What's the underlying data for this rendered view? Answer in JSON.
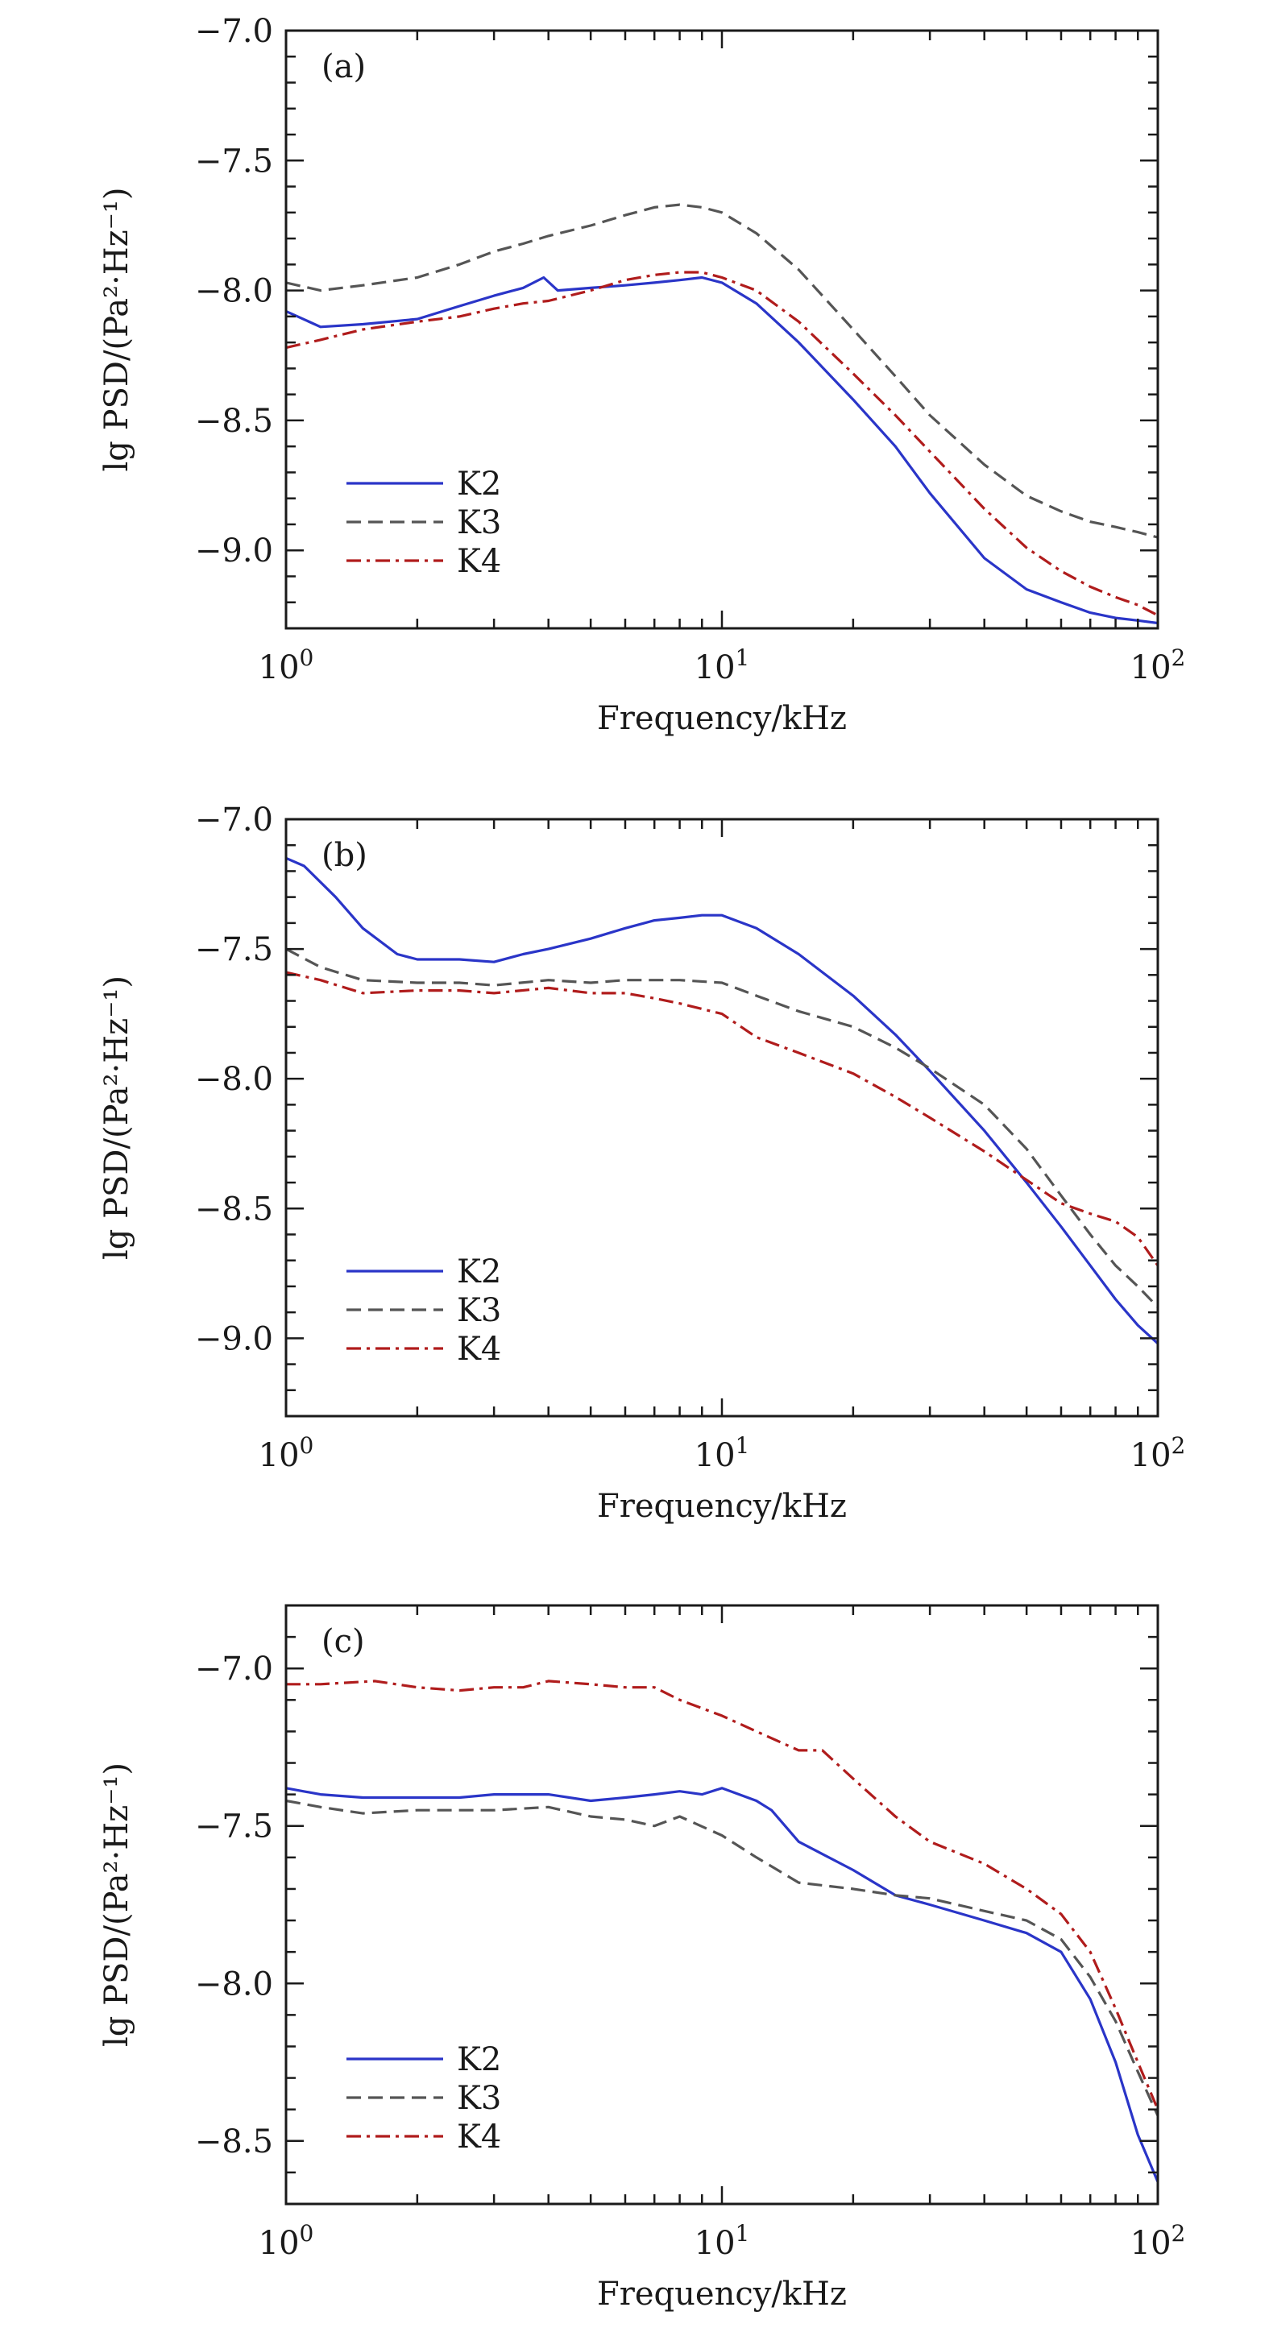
{
  "chart_data": [
    {
      "type": "line",
      "panel_label": "(a)",
      "xscale": "log",
      "xlim": [
        1,
        100
      ],
      "ylim": [
        -9.3,
        -7.0
      ],
      "xlabel": "Frequency/kHz",
      "ylabel": "lg PSD/(Pa²·Hz⁻¹)",
      "xticks": [
        {
          "value": 1,
          "base": "10",
          "exp": "0"
        },
        {
          "value": 10,
          "base": "10",
          "exp": "1"
        },
        {
          "value": 100,
          "base": "10",
          "exp": "2"
        }
      ],
      "yticks": [
        {
          "value": -7.0,
          "label": "−7.0"
        },
        {
          "value": -7.5,
          "label": "−7.5"
        },
        {
          "value": -8.0,
          "label": "−8.0"
        },
        {
          "value": -8.5,
          "label": "−8.5"
        },
        {
          "value": -9.0,
          "label": "−9.0"
        }
      ],
      "legend": "lower-left",
      "series": [
        {
          "name": "K2",
          "color": "#2a35c8",
          "dash": "solid",
          "x": [
            1,
            1.2,
            1.5,
            2,
            2.5,
            3,
            3.5,
            3.9,
            4.2,
            5,
            6,
            7,
            8,
            9,
            10,
            12,
            15,
            20,
            25,
            30,
            40,
            50,
            60,
            70,
            80,
            90,
            100
          ],
          "y": [
            -8.08,
            -8.14,
            -8.13,
            -8.11,
            -8.06,
            -8.02,
            -7.99,
            -7.95,
            -8.0,
            -7.99,
            -7.98,
            -7.97,
            -7.96,
            -7.95,
            -7.97,
            -8.05,
            -8.2,
            -8.42,
            -8.6,
            -8.78,
            -9.03,
            -9.15,
            -9.2,
            -9.24,
            -9.26,
            -9.27,
            -9.28
          ]
        },
        {
          "name": "K3",
          "color": "#555555",
          "dash": "dash",
          "x": [
            1,
            1.2,
            1.5,
            2,
            2.5,
            3,
            3.5,
            4,
            5,
            6,
            7,
            8,
            9,
            10,
            12,
            15,
            20,
            25,
            30,
            40,
            50,
            60,
            70,
            80,
            90,
            100
          ],
          "y": [
            -7.97,
            -8.0,
            -7.98,
            -7.95,
            -7.9,
            -7.85,
            -7.82,
            -7.79,
            -7.75,
            -7.71,
            -7.68,
            -7.67,
            -7.68,
            -7.7,
            -7.78,
            -7.92,
            -8.15,
            -8.33,
            -8.48,
            -8.67,
            -8.79,
            -8.85,
            -8.89,
            -8.91,
            -8.93,
            -8.95
          ]
        },
        {
          "name": "K4",
          "color": "#b01c1c",
          "dash": "dashdot",
          "x": [
            1,
            1.2,
            1.5,
            2,
            2.5,
            3,
            3.5,
            4,
            5,
            6,
            7,
            8,
            9,
            10,
            12,
            15,
            20,
            25,
            30,
            40,
            50,
            60,
            70,
            80,
            90,
            100
          ],
          "y": [
            -8.22,
            -8.19,
            -8.15,
            -8.12,
            -8.1,
            -8.07,
            -8.05,
            -8.04,
            -8.0,
            -7.96,
            -7.94,
            -7.93,
            -7.93,
            -7.95,
            -8.0,
            -8.12,
            -8.32,
            -8.48,
            -8.62,
            -8.84,
            -8.99,
            -9.08,
            -9.14,
            -9.18,
            -9.21,
            -9.25
          ]
        }
      ]
    },
    {
      "type": "line",
      "panel_label": "(b)",
      "xscale": "log",
      "xlim": [
        1,
        100
      ],
      "ylim": [
        -9.3,
        -7.0
      ],
      "xlabel": "Frequency/kHz",
      "ylabel": "lg PSD/(Pa²·Hz⁻¹)",
      "xticks": [
        {
          "value": 1,
          "base": "10",
          "exp": "0"
        },
        {
          "value": 10,
          "base": "10",
          "exp": "1"
        },
        {
          "value": 100,
          "base": "10",
          "exp": "2"
        }
      ],
      "yticks": [
        {
          "value": -7.0,
          "label": "−7.0"
        },
        {
          "value": -7.5,
          "label": "−7.5"
        },
        {
          "value": -8.0,
          "label": "−8.0"
        },
        {
          "value": -8.5,
          "label": "−8.5"
        },
        {
          "value": -9.0,
          "label": "−9.0"
        }
      ],
      "legend": "lower-left",
      "series": [
        {
          "name": "K2",
          "color": "#2a35c8",
          "dash": "solid",
          "x": [
            1,
            1.1,
            1.3,
            1.5,
            1.8,
            2,
            2.5,
            3,
            3.5,
            4,
            5,
            6,
            7,
            8,
            9,
            10,
            12,
            15,
            20,
            25,
            30,
            40,
            50,
            60,
            70,
            80,
            90,
            100
          ],
          "y": [
            -7.15,
            -7.18,
            -7.3,
            -7.42,
            -7.52,
            -7.54,
            -7.54,
            -7.55,
            -7.52,
            -7.5,
            -7.46,
            -7.42,
            -7.39,
            -7.38,
            -7.37,
            -7.37,
            -7.42,
            -7.52,
            -7.68,
            -7.83,
            -7.97,
            -8.2,
            -8.4,
            -8.57,
            -8.72,
            -8.85,
            -8.95,
            -9.02
          ]
        },
        {
          "name": "K3",
          "color": "#555555",
          "dash": "dash",
          "x": [
            1,
            1.2,
            1.5,
            2,
            2.5,
            3,
            4,
            5,
            6,
            7,
            8,
            10,
            12,
            15,
            20,
            25,
            30,
            40,
            50,
            60,
            70,
            80,
            90,
            100
          ],
          "y": [
            -7.5,
            -7.57,
            -7.62,
            -7.63,
            -7.63,
            -7.64,
            -7.62,
            -7.63,
            -7.62,
            -7.62,
            -7.62,
            -7.63,
            -7.68,
            -7.74,
            -7.8,
            -7.88,
            -7.96,
            -8.1,
            -8.27,
            -8.45,
            -8.6,
            -8.72,
            -8.8,
            -8.88
          ]
        },
        {
          "name": "K4",
          "color": "#b01c1c",
          "dash": "dashdot",
          "x": [
            1,
            1.2,
            1.5,
            2,
            2.5,
            3,
            4,
            5,
            6,
            7,
            8,
            10,
            12,
            15,
            20,
            25,
            30,
            40,
            50,
            60,
            70,
            80,
            90,
            100
          ],
          "y": [
            -7.59,
            -7.62,
            -7.67,
            -7.66,
            -7.66,
            -7.67,
            -7.65,
            -7.67,
            -7.67,
            -7.69,
            -7.71,
            -7.75,
            -7.84,
            -7.9,
            -7.98,
            -8.07,
            -8.15,
            -8.28,
            -8.39,
            -8.48,
            -8.52,
            -8.55,
            -8.61,
            -8.72
          ]
        }
      ]
    },
    {
      "type": "line",
      "panel_label": "(c)",
      "xscale": "log",
      "xlim": [
        1,
        100
      ],
      "ylim": [
        -8.7,
        -6.8
      ],
      "xlabel": "Frequency/kHz",
      "ylabel": "lg PSD/(Pa²·Hz⁻¹)",
      "xticks": [
        {
          "value": 1,
          "base": "10",
          "exp": "0"
        },
        {
          "value": 10,
          "base": "10",
          "exp": "1"
        },
        {
          "value": 100,
          "base": "10",
          "exp": "2"
        }
      ],
      "yticks": [
        {
          "value": -7.0,
          "label": "−7.0"
        },
        {
          "value": -7.5,
          "label": "−7.5"
        },
        {
          "value": -8.0,
          "label": "−8.0"
        },
        {
          "value": -8.5,
          "label": "−8.5"
        }
      ],
      "legend": "lower-left",
      "series": [
        {
          "name": "K2",
          "color": "#2a35c8",
          "dash": "solid",
          "x": [
            1,
            1.2,
            1.5,
            2,
            2.5,
            3,
            4,
            5,
            6,
            7,
            8,
            9,
            10,
            12,
            13,
            15,
            20,
            25,
            30,
            40,
            50,
            60,
            70,
            80,
            90,
            100
          ],
          "y": [
            -7.38,
            -7.4,
            -7.41,
            -7.41,
            -7.41,
            -7.4,
            -7.4,
            -7.42,
            -7.41,
            -7.4,
            -7.39,
            -7.4,
            -7.38,
            -7.42,
            -7.45,
            -7.55,
            -7.64,
            -7.72,
            -7.75,
            -7.8,
            -7.84,
            -7.9,
            -8.05,
            -8.25,
            -8.48,
            -8.63
          ]
        },
        {
          "name": "K3",
          "color": "#555555",
          "dash": "dash",
          "x": [
            1,
            1.2,
            1.5,
            2,
            2.5,
            3,
            4,
            5,
            6,
            7,
            8,
            10,
            12,
            15,
            20,
            25,
            30,
            40,
            50,
            60,
            70,
            80,
            90,
            100
          ],
          "y": [
            -7.42,
            -7.44,
            -7.46,
            -7.45,
            -7.45,
            -7.45,
            -7.44,
            -7.47,
            -7.48,
            -7.5,
            -7.47,
            -7.53,
            -7.6,
            -7.68,
            -7.7,
            -7.72,
            -7.73,
            -7.77,
            -7.8,
            -7.86,
            -7.98,
            -8.12,
            -8.28,
            -8.42
          ]
        },
        {
          "name": "K4",
          "color": "#b01c1c",
          "dash": "dashdot",
          "x": [
            1,
            1.2,
            1.6,
            2,
            2.5,
            3,
            3.5,
            4,
            5,
            6,
            7,
            8,
            10,
            12,
            15,
            17,
            20,
            25,
            30,
            40,
            50,
            60,
            70,
            80,
            90,
            100
          ],
          "y": [
            -7.05,
            -7.05,
            -7.04,
            -7.06,
            -7.07,
            -7.06,
            -7.06,
            -7.04,
            -7.05,
            -7.06,
            -7.06,
            -7.1,
            -7.15,
            -7.2,
            -7.26,
            -7.26,
            -7.35,
            -7.47,
            -7.55,
            -7.62,
            -7.7,
            -7.78,
            -7.9,
            -8.08,
            -8.25,
            -8.4
          ]
        }
      ]
    }
  ]
}
